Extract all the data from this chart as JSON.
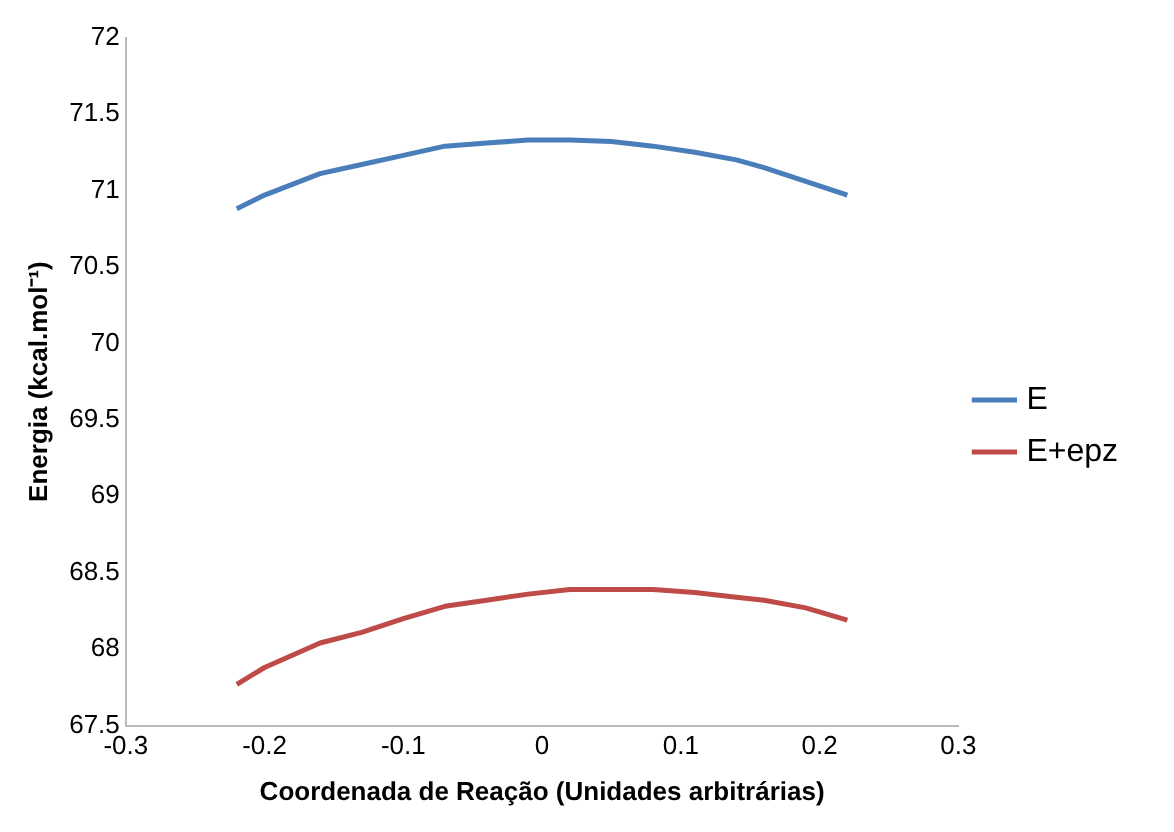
{
  "chart_data": {
    "type": "line",
    "xlabel": "Coordenada de Reação (Unidades arbitrárias)",
    "ylabel": "Energia (kcal.mol⁻¹)",
    "x": [
      -0.22,
      -0.2,
      -0.16,
      -0.13,
      -0.1,
      -0.07,
      -0.04,
      -0.01,
      0.02,
      0.05,
      0.08,
      0.11,
      0.14,
      0.16,
      0.19,
      0.22
    ],
    "series": [
      {
        "name": "E",
        "color": "#4a7ebb",
        "values": [
          70.88,
          70.97,
          71.11,
          71.17,
          71.23,
          71.29,
          71.31,
          71.33,
          71.33,
          71.32,
          71.29,
          71.25,
          71.2,
          71.15,
          71.06,
          70.97
        ]
      },
      {
        "name": "E+epz",
        "color": "#be4b48",
        "values": [
          67.77,
          67.88,
          68.04,
          68.11,
          68.2,
          68.28,
          68.32,
          68.36,
          68.39,
          68.39,
          68.39,
          68.37,
          68.34,
          68.32,
          68.27,
          68.19
        ]
      }
    ],
    "xlim": [
      -0.3,
      0.3
    ],
    "xticks": [
      -0.3,
      -0.2,
      -0.1,
      0,
      0.1,
      0.2,
      0.3
    ],
    "ylim": [
      67.5,
      72
    ],
    "yticks": [
      67.5,
      68,
      68.5,
      69,
      69.5,
      70,
      70.5,
      71,
      71.5,
      72
    ],
    "grid": false,
    "legend": "right",
    "marker": "none",
    "line_style": "solid"
  }
}
